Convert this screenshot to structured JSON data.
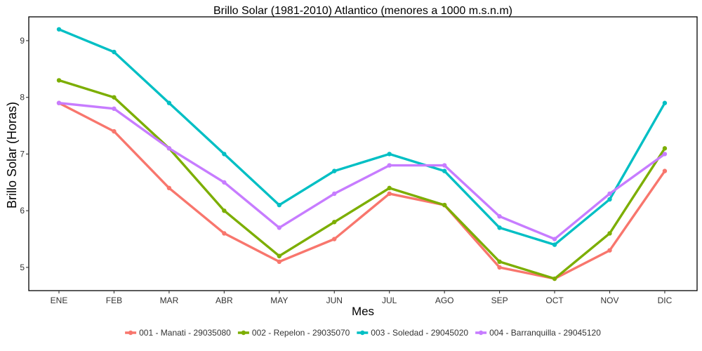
{
  "chart_data": {
    "type": "line",
    "title": "Brillo Solar (1981-2010) Atlantico (menores a 1000 m.s.n.m)",
    "xlabel": "Mes",
    "ylabel": "Brillo Solar (Horas)",
    "categories": [
      "ENE",
      "FEB",
      "MAR",
      "ABR",
      "MAY",
      "JUN",
      "JUL",
      "AGO",
      "SEP",
      "OCT",
      "NOV",
      "DIC"
    ],
    "yticks": [
      "5",
      "6",
      "7",
      "8",
      "9"
    ],
    "ylim": [
      4.59,
      9.42
    ],
    "grid": false,
    "legend_position": "bottom",
    "series": [
      {
        "name": "001 - Manati - 29035080",
        "color": "#F8766D",
        "values": [
          7.9,
          7.4,
          6.4,
          5.6,
          5.1,
          5.5,
          6.3,
          6.1,
          5.0,
          4.8,
          5.3,
          6.7
        ]
      },
      {
        "name": "002 - Repelon - 29035070",
        "color": "#7CAE00",
        "values": [
          8.3,
          8.0,
          7.1,
          6.0,
          5.2,
          5.8,
          6.4,
          6.1,
          5.1,
          4.8,
          5.6,
          7.1
        ]
      },
      {
        "name": "003 - Soledad - 29045020",
        "color": "#00BFC4",
        "values": [
          9.2,
          8.8,
          7.9,
          7.0,
          6.1,
          6.7,
          7.0,
          6.7,
          5.7,
          5.4,
          6.2,
          7.9
        ]
      },
      {
        "name": "004 - Barranquilla - 29045120",
        "color": "#C77CFF",
        "values": [
          7.9,
          7.8,
          7.1,
          6.5,
          5.7,
          6.3,
          6.8,
          6.8,
          5.9,
          5.5,
          6.3,
          7.0
        ]
      }
    ]
  }
}
